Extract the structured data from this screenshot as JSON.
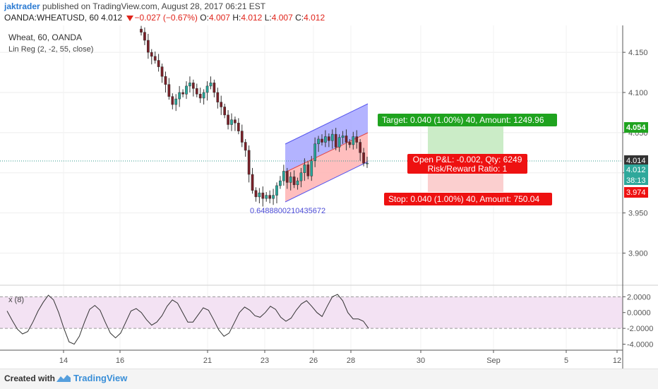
{
  "header": {
    "author": "jaktrader",
    "published": "published on TradingView.com, August 28, 2017 06:21 EST",
    "symbol": "OANDA:WHEATUSD, 60",
    "last": "4.012",
    "change": "−0.027 (−0.67%)",
    "o_label": "O:",
    "o_value": "4.007",
    "h_label": "H:",
    "h_value": "4.012",
    "l_label": "L:",
    "l_value": "4.007",
    "c_label": "C:",
    "c_value": "4.012"
  },
  "legend": {
    "title": "Wheat, 60, OANDA",
    "indicator": "Lin Reg (2, -2, 55, close)",
    "osc_label": "x (8)"
  },
  "annotations": {
    "regression_value": "0.6488800210435672",
    "target": "Target: 0.040 (1.00%) 40, Amount: 1249.96",
    "pnl": "Open P&L: -0.002, Qty: 6249",
    "rr": "Risk/Reward Ratio: 1",
    "stop": "Stop: 0.040 (1.00%) 40, Amount: 750.04"
  },
  "price_tags": {
    "target": "4.054",
    "entry": "4.014",
    "last": "4.012",
    "countdown": "38:13",
    "stop": "3.974"
  },
  "colors": {
    "up": "#26a69a",
    "down": "#7a1f27",
    "target_label": "#1fa31f",
    "stop_label": "#ee1111",
    "channel_upper": "#8c8cff",
    "channel_lower": "#ff9a9a",
    "osc_band": "#f3e2f3",
    "brand": "#3a8fd8"
  },
  "footer": {
    "created": "Created with",
    "brand": "TradingView"
  },
  "chart_data": [
    {
      "type": "candlestick",
      "title": "Wheat, 60, OANDA",
      "x_ticks": [
        "14",
        "16",
        "21",
        "23",
        "26",
        "28",
        "30",
        "Sep",
        "5",
        "12"
      ],
      "y_ticks": [
        "4.150",
        "4.100",
        "4.050",
        "4.000",
        "3.950",
        "3.900"
      ],
      "ylim": [
        3.86,
        4.18
      ],
      "series": [
        {
          "name": "close",
          "values": [
            4.175,
            4.165,
            4.15,
            4.145,
            4.14,
            4.132,
            4.12,
            4.11,
            4.095,
            4.085,
            4.092,
            4.1,
            4.098,
            4.108,
            4.112,
            4.105,
            4.098,
            4.093,
            4.1,
            4.108,
            4.112,
            4.1,
            4.088,
            4.082,
            4.072,
            4.06,
            4.066,
            4.062,
            4.052,
            4.038,
            4.028,
            3.998,
            3.978,
            3.97,
            3.975,
            3.968,
            3.972,
            3.968,
            3.972,
            3.984,
            3.99,
            4.002,
            3.988,
            3.995,
            3.985,
            3.99,
            4.0,
            4.01,
            3.996,
            4.015,
            4.036,
            4.042,
            4.038,
            4.045,
            4.04,
            4.048,
            4.032,
            4.044,
            4.046,
            4.038,
            4.035,
            4.045,
            4.038,
            4.025,
            4.012,
            4.012
          ]
        }
      ]
    },
    {
      "type": "line",
      "title": "x (8)",
      "y_ticks": [
        "2.0000",
        "0.0000",
        "-2.0000",
        "-4.0000"
      ],
      "ylim": [
        -4.4,
        3.1
      ],
      "series": [
        {
          "name": "x (8)",
          "values": [
            0.2,
            -1.0,
            -2.1,
            -2.7,
            -2.4,
            -1.2,
            0.2,
            1.3,
            2.2,
            1.6,
            0.0,
            -2.0,
            -3.7,
            -4.0,
            -3.0,
            -1.2,
            0.4,
            0.9,
            0.3,
            -1.2,
            -2.6,
            -3.2,
            -2.6,
            -1.2,
            0.2,
            0.5,
            0.0,
            -0.9,
            -1.6,
            -1.2,
            -0.4,
            0.8,
            1.6,
            1.2,
            0.0,
            -1.2,
            -1.2,
            -0.3,
            0.6,
            0.3,
            -0.9,
            -2.2,
            -3.0,
            -2.6,
            -1.3,
            0.0,
            0.7,
            0.3,
            -0.4,
            -0.6,
            0.0,
            0.8,
            0.4,
            -0.6,
            -1.1,
            -0.7,
            0.3,
            1.1,
            1.5,
            0.8,
            0.0,
            -0.5,
            0.8,
            2.0,
            2.3,
            1.5,
            0.0,
            -0.8,
            -0.8,
            -1.1,
            -2.0
          ]
        }
      ]
    }
  ]
}
